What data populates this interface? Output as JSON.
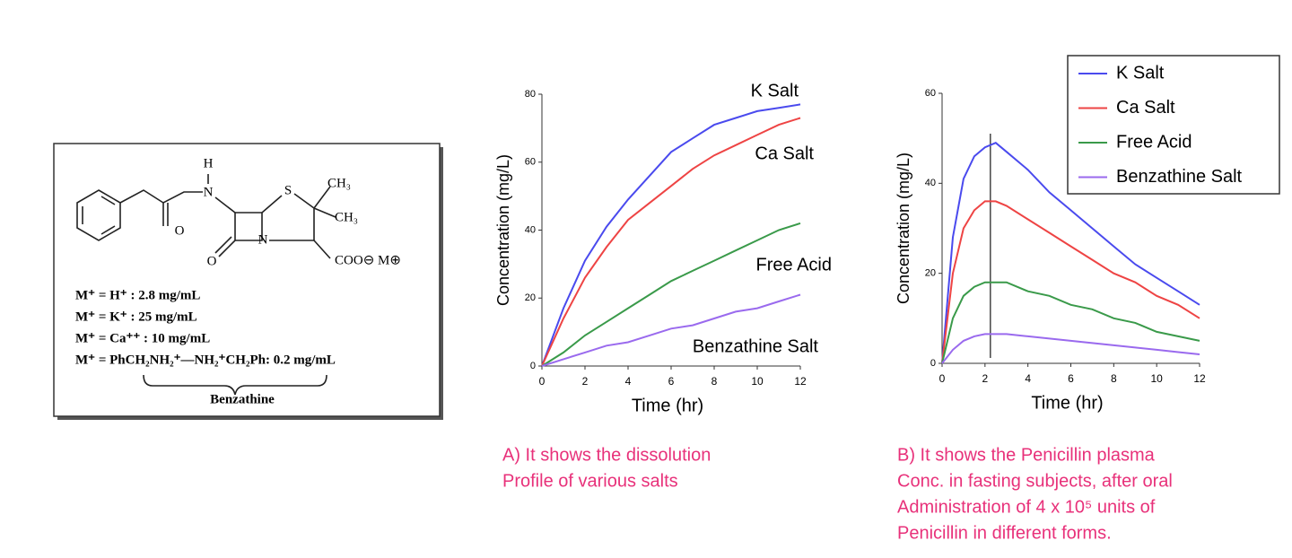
{
  "structure": {
    "atoms": [
      "H",
      "N",
      "S",
      "CH₃",
      "CH₃",
      "O",
      "N",
      "O",
      "COO⊖ M⊕"
    ],
    "salts": [
      "M⁺ =  H⁺ : 2.8 mg/mL",
      "M⁺ =  K⁺ : 25 mg/mL",
      "M⁺ =  Ca⁺⁺ :  10 mg/mL",
      "M⁺ =   PhCH₂NH₂⁺—NH₂⁺CH₂Ph: 0.2 mg/mL"
    ],
    "brace_label": "Benzathine"
  },
  "chart_data": [
    {
      "type": "line",
      "xlabel": "Time (hr)",
      "ylabel": "Concentration (mg/L)",
      "caption": [
        "A) It shows the dissolution",
        "Profile of various salts"
      ],
      "x": [
        0,
        1,
        2,
        3,
        4,
        5,
        6,
        7,
        8,
        9,
        10,
        11,
        12
      ],
      "xlim": [
        0,
        12
      ],
      "xticks": [
        0,
        2,
        4,
        6,
        8,
        10,
        12
      ],
      "ylim": [
        0,
        80
      ],
      "yticks": [
        0,
        20,
        40,
        60,
        80
      ],
      "legend": "inline",
      "series": [
        {
          "name": "K Salt",
          "color": "#4a4aee",
          "values": [
            0,
            17,
            31,
            41,
            49,
            56,
            63,
            67,
            71,
            73,
            75,
            76,
            77
          ]
        },
        {
          "name": "Ca Salt",
          "color": "#ee4444",
          "values": [
            0,
            14,
            26,
            35,
            43,
            48,
            53,
            58,
            62,
            65,
            68,
            71,
            73
          ]
        },
        {
          "name": "Free Acid",
          "color": "#3a9a4a",
          "values": [
            0,
            4,
            9,
            13,
            17,
            21,
            25,
            28,
            31,
            34,
            37,
            40,
            42
          ]
        },
        {
          "name": "Benzathine Salt",
          "color": "#9a6aee",
          "values": [
            0,
            2,
            4,
            6,
            7,
            9,
            11,
            12,
            14,
            16,
            17,
            19,
            21
          ]
        }
      ]
    },
    {
      "type": "line",
      "xlabel": "Time (hr)",
      "ylabel": "Concentration (mg/L)",
      "caption": [
        "B) It shows the Penicillin plasma",
        "Conc. in fasting subjects, after oral",
        "Administration of 4 x 10⁵ units of",
        "Penicillin in different forms."
      ],
      "x": [
        0,
        0.5,
        1,
        1.5,
        2,
        2.5,
        3,
        4,
        5,
        6,
        7,
        8,
        9,
        10,
        11,
        12
      ],
      "xlim": [
        0,
        12
      ],
      "xticks": [
        0,
        2,
        4,
        6,
        8,
        10,
        12
      ],
      "ylim": [
        0,
        60
      ],
      "yticks": [
        0,
        20,
        40,
        60
      ],
      "legend": "upper right",
      "vline": 2.25,
      "series": [
        {
          "name": "K Salt",
          "color": "#4a4aee",
          "values": [
            0,
            28,
            41,
            46,
            48,
            49,
            47,
            43,
            38,
            34,
            30,
            26,
            22,
            19,
            16,
            13
          ]
        },
        {
          "name": "Ca Salt",
          "color": "#ee4444",
          "values": [
            0,
            20,
            30,
            34,
            36,
            36,
            35,
            32,
            29,
            26,
            23,
            20,
            18,
            15,
            13,
            10
          ]
        },
        {
          "name": "Free Acid",
          "color": "#3a9a4a",
          "values": [
            0,
            10,
            15,
            17,
            18,
            18,
            18,
            16,
            15,
            13,
            12,
            10,
            9,
            7,
            6,
            5
          ]
        },
        {
          "name": "Benzathine Salt",
          "color": "#9a6aee",
          "values": [
            0,
            3,
            5,
            6,
            6.5,
            6.5,
            6.5,
            6,
            5.5,
            5,
            4.5,
            4,
            3.5,
            3,
            2.5,
            2
          ]
        }
      ]
    }
  ]
}
